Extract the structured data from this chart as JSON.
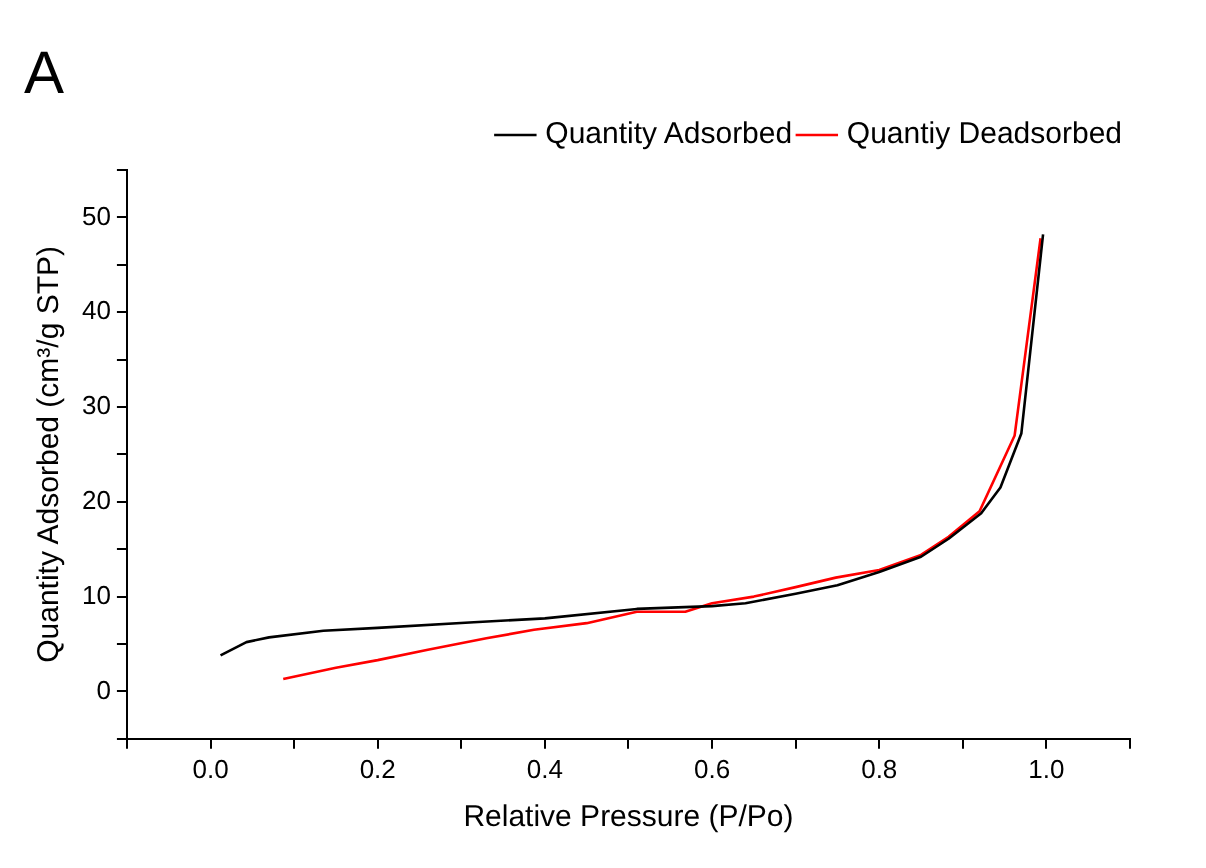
{
  "chart_data": {
    "type": "line",
    "title": "A",
    "xlabel": "Relative Pressure (P/Po)",
    "ylabel": "Quantity Adsorbed (cm³/g STP)",
    "xlim": [
      -0.1,
      1.1
    ],
    "xticks": [
      {
        "value": -0.1,
        "label": null
      },
      {
        "value": 0,
        "label": "0.0"
      },
      {
        "value": 0.1,
        "label": null
      },
      0.2,
      {
        "value": 0.3,
        "label": null
      },
      0.4,
      {
        "value": 0.5,
        "label": null
      },
      0.6,
      {
        "value": 0.7,
        "label": null
      },
      0.8,
      {
        "value": 0.9,
        "label": null
      },
      {
        "value": 1,
        "label": "1.0"
      },
      {
        "value": 1.1,
        "label": null
      }
    ],
    "ylim": [
      -5,
      55
    ],
    "yticks": [
      {
        "value": -5,
        "label": null
      },
      0,
      {
        "value": 5,
        "label": null
      },
      10,
      {
        "value": 15,
        "label": null
      },
      20,
      {
        "value": 25,
        "label": null
      },
      30,
      {
        "value": 35,
        "label": null
      },
      40,
      {
        "value": 45,
        "label": null
      },
      50,
      {
        "value": 55,
        "label": null
      }
    ],
    "grid": false,
    "legend": "top right",
    "marker": "none",
    "line_style": "solid",
    "series": [
      {
        "name": "Quantity Adsorbed",
        "color": "#000000",
        "x": [
          0.012,
          0.043,
          0.07,
          0.135,
          0.2,
          0.315,
          0.4,
          0.51,
          0.6,
          0.64,
          0.7,
          0.75,
          0.8,
          0.85,
          0.883,
          0.922,
          0.945,
          0.97,
          0.996
        ],
        "values": [
          3.8,
          5.2,
          5.7,
          6.4,
          6.7,
          7.3,
          7.7,
          8.7,
          9.0,
          9.3,
          10.3,
          11.2,
          12.6,
          14.2,
          16.1,
          18.8,
          21.5,
          27.2,
          48.2
        ]
      },
      {
        "name": "Quantiy Deadsorbed",
        "color": "#ff0000",
        "x": [
          0.087,
          0.15,
          0.2,
          0.26,
          0.33,
          0.387,
          0.45,
          0.51,
          0.568,
          0.6,
          0.65,
          0.7,
          0.748,
          0.8,
          0.85,
          0.883,
          0.92,
          0.962,
          0.993
        ],
        "values": [
          1.3,
          2.5,
          3.3,
          4.4,
          5.6,
          6.5,
          7.2,
          8.4,
          8.4,
          9.3,
          10.0,
          11.0,
          12.0,
          12.8,
          14.4,
          16.3,
          19.0,
          27.0,
          47.8
        ]
      }
    ]
  }
}
